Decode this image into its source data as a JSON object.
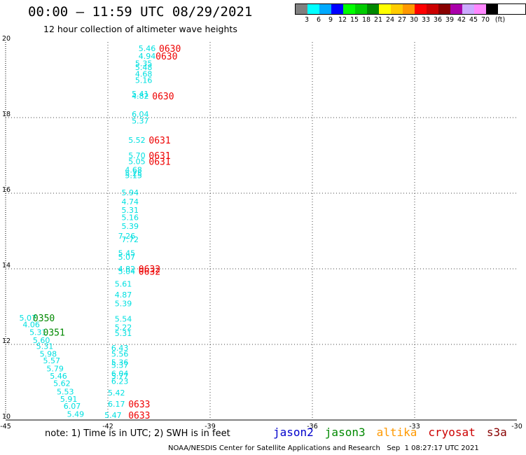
{
  "title": "00:00 – 11:59 UTC 08/29/2021",
  "subtitle": "12 hour collection of altimeter wave heights",
  "legend": {
    "colors": [
      "#808080",
      "#00ffff",
      "#00aaff",
      "#0000ff",
      "#00ff00",
      "#00cc00",
      "#008800",
      "#ffff00",
      "#ffcc00",
      "#ff9900",
      "#ff0000",
      "#cc0000",
      "#880000",
      "#aa00aa",
      "#ccaaff",
      "#ff88ff",
      "#000000"
    ],
    "labels": [
      "3",
      "6",
      "9",
      "12",
      "15",
      "18",
      "21",
      "24",
      "27",
      "30",
      "33",
      "36",
      "39",
      "42",
      "45",
      "70",
      "(ft)"
    ]
  },
  "chart_data": {
    "type": "scatter",
    "xlim": [
      -45,
      -30
    ],
    "ylim": [
      10,
      20
    ],
    "x_ticks": [
      "-45",
      "-42",
      "-39",
      "-36",
      "-33",
      "-30"
    ],
    "y_ticks": [
      "20",
      "18",
      "16",
      "14",
      "12",
      "10"
    ],
    "grid": true,
    "point_color": "#00e0e0",
    "points": [
      {
        "x": -41.1,
        "y": 19.76,
        "label": "5.46"
      },
      {
        "x": -41.1,
        "y": 19.56,
        "label": "4.94"
      },
      {
        "x": -41.2,
        "y": 19.36,
        "label": "5.35"
      },
      {
        "x": -41.2,
        "y": 19.26,
        "label": "5.48"
      },
      {
        "x": -41.2,
        "y": 19.08,
        "label": "4.68"
      },
      {
        "x": -41.2,
        "y": 18.92,
        "label": "5.16"
      },
      {
        "x": -41.3,
        "y": 18.56,
        "label": "5.41"
      },
      {
        "x": -41.3,
        "y": 18.5,
        "label": "4.82"
      },
      {
        "x": -41.3,
        "y": 18.02,
        "label": "6.04"
      },
      {
        "x": -41.3,
        "y": 17.84,
        "label": "5.37"
      },
      {
        "x": -41.4,
        "y": 17.33,
        "label": "5.52"
      },
      {
        "x": -41.4,
        "y": 16.93,
        "label": "5.70"
      },
      {
        "x": -41.4,
        "y": 16.77,
        "label": "5.05"
      },
      {
        "x": -41.5,
        "y": 16.55,
        "label": "4.68"
      },
      {
        "x": -41.5,
        "y": 16.45,
        "label": "5.25"
      },
      {
        "x": -41.5,
        "y": 16.4,
        "label": "5.15"
      },
      {
        "x": -41.6,
        "y": 15.94,
        "label": "5.94"
      },
      {
        "x": -41.6,
        "y": 15.7,
        "label": "4.74"
      },
      {
        "x": -41.6,
        "y": 15.48,
        "label": "5.31"
      },
      {
        "x": -41.6,
        "y": 15.29,
        "label": "5.16"
      },
      {
        "x": -41.6,
        "y": 15.06,
        "label": "5.39"
      },
      {
        "x": -41.7,
        "y": 14.8,
        "label": "7.26"
      },
      {
        "x": -41.6,
        "y": 14.7,
        "label": "7.72"
      },
      {
        "x": -41.7,
        "y": 14.34,
        "label": "5.45"
      },
      {
        "x": -41.7,
        "y": 14.24,
        "label": "5.07"
      },
      {
        "x": -41.7,
        "y": 13.93,
        "label": "4.82"
      },
      {
        "x": -41.7,
        "y": 13.86,
        "label": "5.04"
      },
      {
        "x": -41.8,
        "y": 13.53,
        "label": "5.61"
      },
      {
        "x": -41.8,
        "y": 13.24,
        "label": "4.87"
      },
      {
        "x": -41.8,
        "y": 13.01,
        "label": "5.39"
      },
      {
        "x": -41.8,
        "y": 12.6,
        "label": "5.54"
      },
      {
        "x": -41.8,
        "y": 12.38,
        "label": "5.22"
      },
      {
        "x": -41.8,
        "y": 12.22,
        "label": "5.31"
      },
      {
        "x": -41.9,
        "y": 11.83,
        "label": "6.43"
      },
      {
        "x": -41.9,
        "y": 11.68,
        "label": "5.56"
      },
      {
        "x": -41.9,
        "y": 11.45,
        "label": "5.36"
      },
      {
        "x": -41.9,
        "y": 11.38,
        "label": "5.37"
      },
      {
        "x": -41.9,
        "y": 11.16,
        "label": "6.04"
      },
      {
        "x": -41.9,
        "y": 11.09,
        "label": "5.77"
      },
      {
        "x": -41.9,
        "y": 10.95,
        "label": "6.23"
      },
      {
        "x": -42.0,
        "y": 10.65,
        "label": "5.42"
      },
      {
        "x": -42.0,
        "y": 10.35,
        "label": "6.17"
      },
      {
        "x": -42.1,
        "y": 10.06,
        "label": "5.47"
      },
      {
        "x": -44.6,
        "y": 12.63,
        "label": "5.07"
      },
      {
        "x": -44.5,
        "y": 12.45,
        "label": "4.06"
      },
      {
        "x": -44.3,
        "y": 12.25,
        "label": "5.31"
      },
      {
        "x": -44.2,
        "y": 12.04,
        "label": "5.60"
      },
      {
        "x": -44.1,
        "y": 11.88,
        "label": "5.31"
      },
      {
        "x": -44.0,
        "y": 11.68,
        "label": "5.98"
      },
      {
        "x": -43.9,
        "y": 11.5,
        "label": "5.57"
      },
      {
        "x": -43.8,
        "y": 11.29,
        "label": "5.79"
      },
      {
        "x": -43.7,
        "y": 11.09,
        "label": "5.46"
      },
      {
        "x": -43.6,
        "y": 10.9,
        "label": "5.62"
      },
      {
        "x": -43.5,
        "y": 10.68,
        "label": "5.53"
      },
      {
        "x": -43.4,
        "y": 10.48,
        "label": "5.91"
      },
      {
        "x": -43.3,
        "y": 10.3,
        "label": "6.07"
      },
      {
        "x": -43.2,
        "y": 10.08,
        "label": "5.49"
      }
    ],
    "time_labels": [
      {
        "x": -40.5,
        "y": 19.76,
        "label": "0630",
        "color": "#ee0000"
      },
      {
        "x": -40.6,
        "y": 19.56,
        "label": "0630",
        "color": "#ee0000"
      },
      {
        "x": -40.7,
        "y": 18.5,
        "label": "0630",
        "color": "#ee0000"
      },
      {
        "x": -40.8,
        "y": 17.33,
        "label": "0631",
        "color": "#ee0000"
      },
      {
        "x": -40.8,
        "y": 16.93,
        "label": "0631",
        "color": "#ee0000"
      },
      {
        "x": -40.8,
        "y": 16.77,
        "label": "0631",
        "color": "#ee0000"
      },
      {
        "x": -41.1,
        "y": 13.93,
        "label": "0632",
        "color": "#ee0000"
      },
      {
        "x": -41.1,
        "y": 13.86,
        "label": "0632",
        "color": "#ee0000"
      },
      {
        "x": -44.2,
        "y": 12.63,
        "label": "0350",
        "color": "#008800"
      },
      {
        "x": -43.9,
        "y": 12.25,
        "label": "0351",
        "color": "#008800"
      },
      {
        "x": -41.4,
        "y": 10.35,
        "label": "0633",
        "color": "#ee0000"
      },
      {
        "x": -41.4,
        "y": 10.06,
        "label": "0633",
        "color": "#ee0000"
      }
    ]
  },
  "note": "note: 1) Time is in UTC; 2) SWH is in feet",
  "satellites": [
    {
      "name": "jason2",
      "color": "#0000cc"
    },
    {
      "name": "jason3",
      "color": "#008800"
    },
    {
      "name": "altika",
      "color": "#ff9900"
    },
    {
      "name": "cryosat",
      "color": "#cc0000"
    },
    {
      "name": "s3a",
      "color": "#880000"
    }
  ],
  "credit": "NOAA/NESDIS Center for Satellite Applications and Research   Sep  1 08:27:17 UTC 2021"
}
